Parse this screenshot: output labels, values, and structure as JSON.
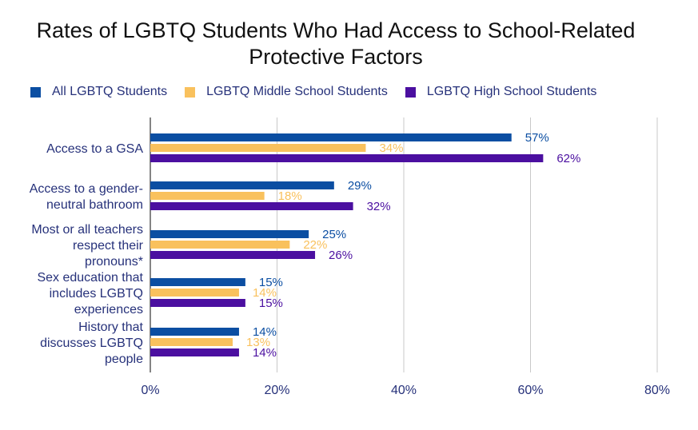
{
  "chart_data": {
    "type": "bar",
    "orientation": "horizontal",
    "title": "Rates of LGBTQ Students Who Had Access to School-Related Protective Factors",
    "categories": [
      [
        "Access to a GSA"
      ],
      [
        "Access to a gender-",
        "neutral bathroom"
      ],
      [
        "Most or all teachers",
        "respect their",
        "pronouns*"
      ],
      [
        "Sex education that",
        "includes LGBTQ",
        "experiences"
      ],
      [
        "History that",
        "discusses LGBTQ",
        "people"
      ]
    ],
    "series": [
      {
        "name": "All LGBTQ Students",
        "color": "#0b4ea2",
        "values": [
          57,
          29,
          25,
          15,
          14
        ],
        "labels": [
          "57%",
          "29%",
          "25%",
          "15%",
          "14%"
        ]
      },
      {
        "name": "LGBTQ Middle School Students",
        "color": "#f9c15d",
        "values": [
          34,
          18,
          22,
          14,
          13
        ],
        "labels": [
          "34%",
          "18%",
          "22%",
          "14%",
          "13%"
        ]
      },
      {
        "name": "LGBTQ High School Students",
        "color": "#4b0fa0",
        "values": [
          62,
          32,
          26,
          15,
          14
        ],
        "labels": [
          "62%",
          "32%",
          "26%",
          "15%",
          "14%"
        ]
      }
    ],
    "xlim": [
      0,
      80
    ],
    "xticks": [
      0,
      20,
      40,
      60,
      80
    ],
    "xtick_labels": [
      "0%",
      "20%",
      "40%",
      "60%",
      "80%"
    ],
    "grid": true,
    "legend_position": "top"
  }
}
